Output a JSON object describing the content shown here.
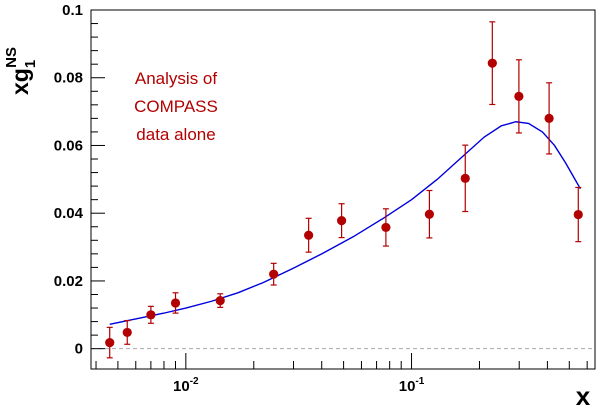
{
  "chart_data": {
    "type": "scatter",
    "x_scale": "log",
    "xlim": [
      0.0038,
      0.65
    ],
    "ylim": [
      -0.006,
      0.1
    ],
    "xlabel": "x",
    "ylabel": "xg_1^NS",
    "ylabel_parts": {
      "main": "xg",
      "sub": "1",
      "sup": "NS"
    },
    "y_ticks": [
      {
        "value": 0,
        "label": "0"
      },
      {
        "value": 0.02,
        "label": "0.02"
      },
      {
        "value": 0.04,
        "label": "0.04"
      },
      {
        "value": 0.06,
        "label": "0.06"
      },
      {
        "value": 0.08,
        "label": "0.08"
      },
      {
        "value": 0.1,
        "label": "0.1"
      }
    ],
    "x_ticks": [
      {
        "value": 0.01,
        "base": "10",
        "exp": "-2"
      },
      {
        "value": 0.1,
        "base": "10",
        "exp": "-1"
      }
    ],
    "zero_line": {
      "y": 0,
      "style": "dashed"
    },
    "annotation": [
      "Analysis of",
      "COMPASS",
      "data alone"
    ],
    "data_color": "#b30000",
    "curve_color": "#0000dd",
    "points": [
      {
        "x": 0.0046,
        "y": 0.0018,
        "err": 0.0045
      },
      {
        "x": 0.0055,
        "y": 0.0048,
        "err": 0.0035
      },
      {
        "x": 0.007,
        "y": 0.01,
        "err": 0.0025
      },
      {
        "x": 0.009,
        "y": 0.0135,
        "err": 0.003
      },
      {
        "x": 0.0142,
        "y": 0.0142,
        "err": 0.002
      },
      {
        "x": 0.0245,
        "y": 0.022,
        "err": 0.0032
      },
      {
        "x": 0.035,
        "y": 0.0335,
        "err": 0.005
      },
      {
        "x": 0.049,
        "y": 0.0378,
        "err": 0.005
      },
      {
        "x": 0.077,
        "y": 0.0358,
        "err": 0.0055
      },
      {
        "x": 0.12,
        "y": 0.0397,
        "err": 0.007
      },
      {
        "x": 0.173,
        "y": 0.0503,
        "err": 0.0098
      },
      {
        "x": 0.228,
        "y": 0.0843,
        "err": 0.0122
      },
      {
        "x": 0.299,
        "y": 0.0745,
        "err": 0.0108
      },
      {
        "x": 0.407,
        "y": 0.068,
        "err": 0.0105
      },
      {
        "x": 0.548,
        "y": 0.0396,
        "err": 0.008
      }
    ],
    "fit_curve": {
      "x": [
        0.0046,
        0.006,
        0.008,
        0.01,
        0.013,
        0.017,
        0.022,
        0.03,
        0.04,
        0.055,
        0.075,
        0.1,
        0.13,
        0.17,
        0.21,
        0.25,
        0.29,
        0.33,
        0.38,
        0.43,
        0.48,
        0.53,
        0.56
      ],
      "y": [
        0.0072,
        0.0088,
        0.0105,
        0.012,
        0.014,
        0.0165,
        0.0195,
        0.0238,
        0.028,
        0.033,
        0.0385,
        0.044,
        0.05,
        0.057,
        0.0625,
        0.0658,
        0.067,
        0.0665,
        0.064,
        0.06,
        0.055,
        0.05,
        0.0472
      ]
    }
  }
}
